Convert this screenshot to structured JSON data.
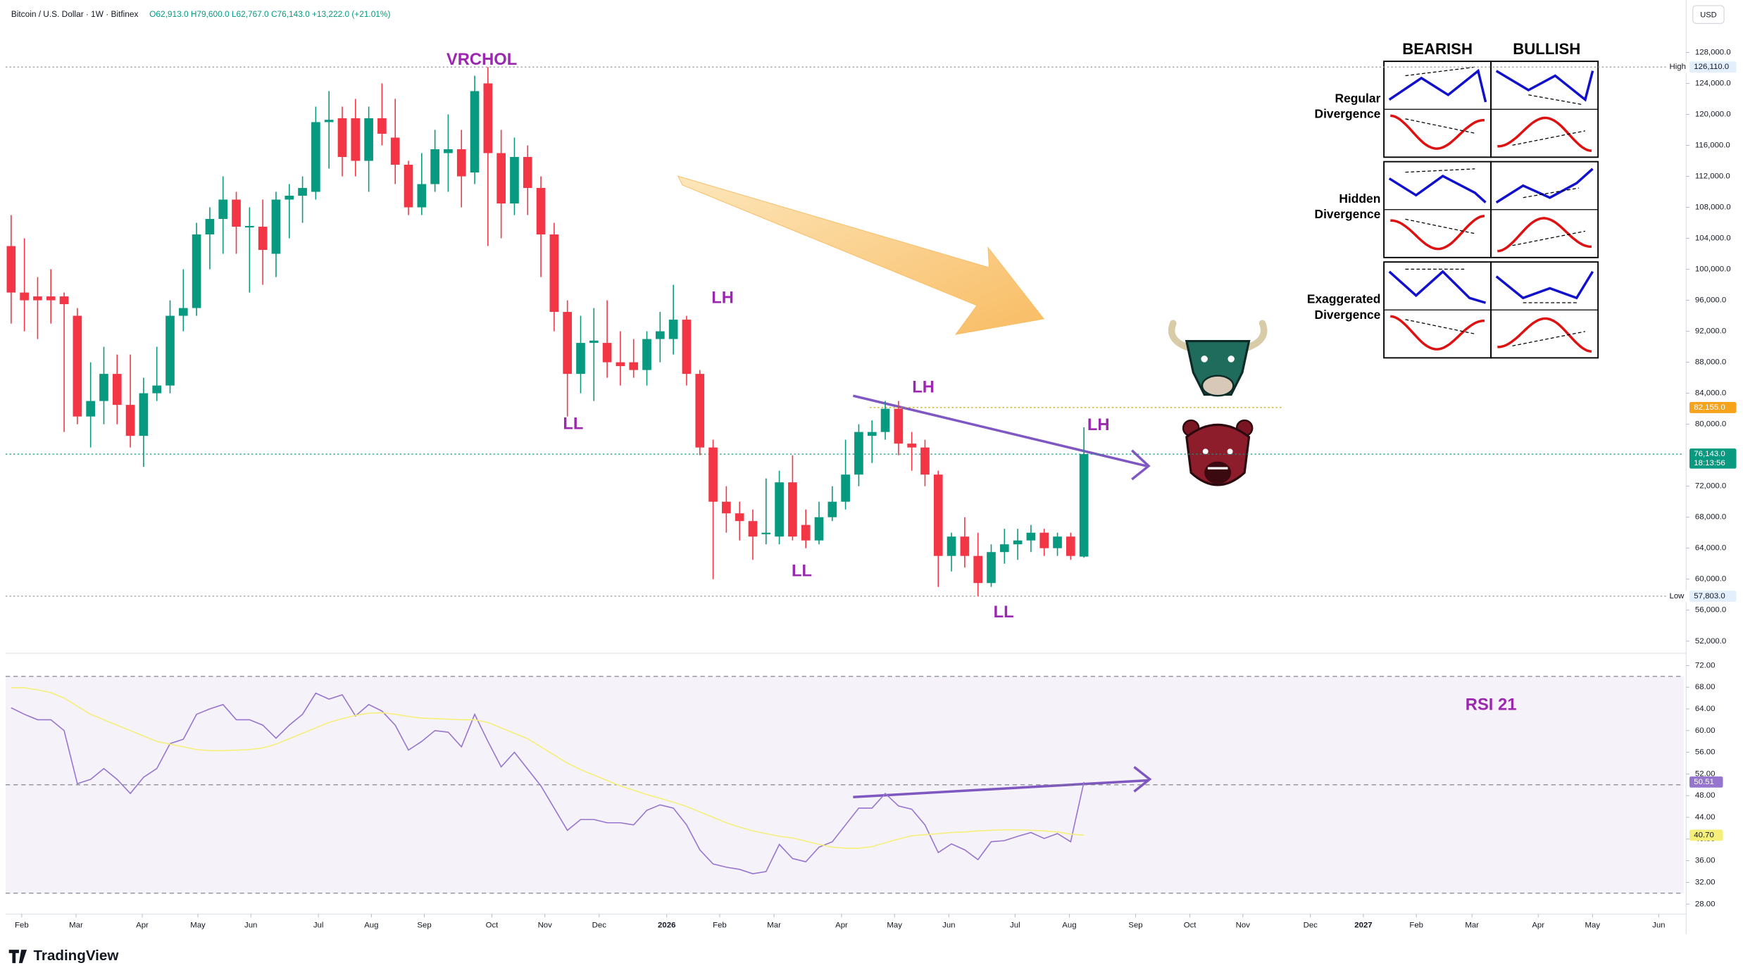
{
  "header": {
    "symbol": "Bitcoin / U.S. Dollar · 1W · Bitfinex",
    "ohlc": "O62,913.0 H79,600.0 L62,767.0 C76,143.0 +13,222.0 (+21.01%)",
    "currency": "USD"
  },
  "footer": "TradingView",
  "divergence_table": {
    "columns": [
      "BEARISH",
      "BULLISH"
    ],
    "rows": [
      [
        "Regular",
        "Divergence"
      ],
      [
        "Hidden",
        "Divergence"
      ],
      [
        "Exaggerated",
        "Divergence"
      ]
    ]
  },
  "chart_data": [
    {
      "type": "candlestick",
      "up_color": "#089981",
      "down_color": "#f23645",
      "open": [
        103000,
        97000,
        96500,
        96500,
        96500,
        94000,
        81000,
        83000,
        86500,
        82500,
        78500,
        84000,
        85000,
        94000,
        95000,
        104500,
        106500,
        109000,
        105400,
        105500,
        102000,
        109000,
        109500,
        110000,
        119000,
        119500,
        119500,
        114000,
        119500,
        117000,
        113500,
        108000,
        111000,
        115000,
        115500,
        112500,
        124000,
        115000,
        108500,
        114500,
        110500,
        104500,
        94500,
        86500,
        90500,
        90500,
        88000,
        88000,
        87000,
        91000,
        91000,
        93500,
        86500,
        77000,
        70000,
        68500,
        67500,
        65800,
        65500,
        72500,
        67000,
        65000,
        68000,
        70000,
        73500,
        78500,
        79000,
        82000,
        77500,
        77000,
        73500,
        63000,
        65500,
        63000,
        59500,
        63500,
        64500,
        65000,
        66000,
        64000,
        65500,
        62913
      ],
      "high": [
        107000,
        104000,
        99000,
        100000,
        97000,
        95000,
        88000,
        90000,
        89000,
        89000,
        86000,
        90000,
        96000,
        100000,
        106000,
        108000,
        112000,
        110000,
        108000,
        109000,
        110000,
        111000,
        112000,
        121000,
        123000,
        121000,
        122000,
        121000,
        124000,
        122000,
        114000,
        115000,
        118000,
        120000,
        118000,
        125000,
        126110,
        118000,
        117000,
        116000,
        112000,
        106000,
        96000,
        94000,
        95000,
        96000,
        92000,
        91000,
        92000,
        94500,
        98000,
        94000,
        87000,
        78000,
        72000,
        70000,
        69000,
        73000,
        74000,
        76000,
        69000,
        70000,
        72000,
        78000,
        80000,
        80500,
        83000,
        83000,
        79000,
        78000,
        74000,
        66000,
        68000,
        66000,
        64500,
        66500,
        66500,
        67000,
        66500,
        66000,
        66000,
        79600
      ],
      "low": [
        93000,
        92000,
        91000,
        93000,
        79000,
        80000,
        77000,
        80000,
        80000,
        77000,
        74500,
        83000,
        84000,
        92000,
        94000,
        100000,
        102000,
        102000,
        97000,
        98000,
        99000,
        104000,
        106000,
        109000,
        113000,
        112000,
        112000,
        110000,
        116000,
        111000,
        107000,
        107000,
        110000,
        110000,
        108000,
        111000,
        103000,
        104000,
        107000,
        107000,
        99000,
        92000,
        81000,
        84000,
        83000,
        86000,
        85000,
        86000,
        85000,
        88000,
        89000,
        85000,
        76000,
        60000,
        66000,
        65000,
        62500,
        64500,
        64500,
        65000,
        64000,
        64500,
        67500,
        69000,
        72000,
        75000,
        78000,
        76000,
        74000,
        72000,
        59000,
        61000,
        61500,
        57803,
        59000,
        62000,
        62500,
        63500,
        63000,
        63000,
        62500,
        62767
      ],
      "close": [
        97000,
        96000,
        96000,
        96000,
        95500,
        81000,
        83000,
        86500,
        82500,
        78500,
        84000,
        85000,
        94000,
        95000,
        104500,
        106500,
        109000,
        105500,
        105600,
        102500,
        109000,
        109500,
        110500,
        119000,
        119300,
        114500,
        114000,
        119500,
        117500,
        113500,
        108000,
        111000,
        115500,
        115500,
        112000,
        123000,
        115000,
        108500,
        114500,
        110500,
        104500,
        94500,
        86500,
        90500,
        90800,
        88000,
        87500,
        87000,
        91000,
        92000,
        93500,
        86500,
        77000,
        70000,
        68500,
        67500,
        65500,
        66000,
        72500,
        65500,
        65000,
        68000,
        70000,
        73500,
        79000,
        79000,
        82000,
        77500,
        77000,
        73500,
        63000,
        65500,
        63000,
        59500,
        63500,
        64500,
        65000,
        66000,
        64000,
        65500,
        63000,
        76143
      ],
      "xlim": [
        -0.42,
        126.3
      ],
      "xticks": [
        {
          "value": 0.8,
          "label": "Feb"
        },
        {
          "value": 4.9,
          "label": "Mar"
        },
        {
          "value": 9.9,
          "label": "Apr"
        },
        {
          "value": 14.1,
          "label": "May"
        },
        {
          "value": 18.1,
          "label": "Jun"
        },
        {
          "value": 23.2,
          "label": "Jul"
        },
        {
          "value": 27.2,
          "label": "Aug"
        },
        {
          "value": 31.2,
          "label": "Sep"
        },
        {
          "value": 36.3,
          "label": "Oct"
        },
        {
          "value": 40.3,
          "label": "Nov"
        },
        {
          "value": 44.4,
          "label": "Dec"
        },
        {
          "value": 49.5,
          "label": "2026"
        },
        {
          "value": 53.5,
          "label": "Feb"
        },
        {
          "value": 57.6,
          "label": "Mar"
        },
        {
          "value": 62.7,
          "label": "Apr"
        },
        {
          "value": 66.7,
          "label": "May"
        },
        {
          "value": 70.8,
          "label": "Jun"
        },
        {
          "value": 75.8,
          "label": "Jul"
        },
        {
          "value": 79.9,
          "label": "Aug"
        },
        {
          "value": 84.9,
          "label": "Sep"
        },
        {
          "value": 89,
          "label": "Oct"
        },
        {
          "value": 93,
          "label": "Nov"
        },
        {
          "value": 98.1,
          "label": "Dec"
        },
        {
          "value": 102.1,
          "label": "2027"
        },
        {
          "value": 106.1,
          "label": "Feb"
        },
        {
          "value": 110.3,
          "label": "Mar"
        },
        {
          "value": 115.3,
          "label": "Apr"
        },
        {
          "value": 119.4,
          "label": "May"
        },
        {
          "value": 124.4,
          "label": "Jun"
        }
      ],
      "ylim": [
        50580,
        134760
      ],
      "yticks": [
        {
          "value": 128000,
          "label": "128,000.0"
        },
        {
          "value": 124000,
          "label": "124,000.0"
        },
        {
          "value": 120000,
          "label": "120,000.0"
        },
        {
          "value": 116000,
          "label": "116,000.0"
        },
        {
          "value": 112000,
          "label": "112,000.0"
        },
        {
          "value": 108000,
          "label": "108,000.0"
        },
        {
          "value": 104000,
          "label": "104,000.0"
        },
        {
          "value": 100000,
          "label": "100,000.0"
        },
        {
          "value": 96000,
          "label": "96,000.0"
        },
        {
          "value": 92000,
          "label": "92,000.0"
        },
        {
          "value": 88000,
          "label": "88,000.0"
        },
        {
          "value": 84000,
          "label": "84,000.0"
        },
        {
          "value": 80000,
          "label": "80,000.0"
        },
        {
          "value": 72000,
          "label": "72,000.0"
        },
        {
          "value": 68000,
          "label": "68,000.0"
        },
        {
          "value": 64000,
          "label": "64,000.0"
        },
        {
          "value": 60000,
          "label": "60,000.0"
        },
        {
          "value": 56000,
          "label": "56,000.0"
        },
        {
          "value": 52000,
          "label": "52,000.0"
        }
      ],
      "annotations": [
        "VRCHOL",
        "LH",
        "LL",
        "LH",
        "LL",
        "LH",
        "LL"
      ],
      "annotation_color": "#9c27b0",
      "price_labels": [
        {
          "label": "High",
          "value": 126110,
          "value_label": "126,110.0",
          "color": "#e3effd"
        },
        {
          "value": 82155,
          "value_label": "82,155.0",
          "color": "#f7a21b"
        },
        {
          "value": 76143,
          "value_label": "76,143.0",
          "countdown": "18:13:56",
          "color": "#089981"
        },
        {
          "label": "Low",
          "value": 57803,
          "value_label": "57,803.0",
          "color": "#e3effd"
        }
      ]
    },
    {
      "type": "line",
      "title": "RSI 21",
      "title_color": "#9c27b0",
      "series": [
        {
          "color": "#9575cd",
          "values": [
            64.2,
            63,
            62,
            62,
            60,
            50.2,
            51,
            53,
            51,
            48.4,
            51.4,
            53,
            57.6,
            58.4,
            63,
            64,
            64.8,
            62,
            62,
            61,
            58.6,
            61,
            63,
            66.9,
            65.8,
            66.6,
            62.7,
            64.8,
            63.6,
            61,
            56.4,
            58,
            60,
            59.7,
            57,
            63,
            58,
            53.3,
            56,
            52.9,
            49.8,
            45.7,
            41.6,
            43.6,
            43.6,
            43,
            43,
            42.6,
            45.3,
            46.3,
            45.7,
            42.6,
            38,
            35.4,
            34.8,
            34.4,
            33.6,
            34,
            39,
            36.4,
            35.8,
            38.5,
            39.5,
            42.6,
            45.7,
            45.7,
            48.4,
            46.1,
            45.5,
            42.6,
            37.5,
            39.1,
            38,
            36.2,
            39.5,
            39.7,
            40.5,
            41.2,
            40.1,
            41,
            39.5,
            50.51
          ],
          "last_value_label": "50.51"
        },
        {
          "color": "#f5ef7a",
          "values": [
            67.9,
            67.9,
            67.5,
            67,
            66,
            64.5,
            63,
            62,
            61,
            60,
            59,
            58,
            57.5,
            57,
            56.5,
            56.3,
            56.3,
            56.4,
            56.5,
            56.8,
            57.5,
            58.5,
            59.5,
            60.5,
            61.5,
            62.2,
            62.8,
            63.2,
            63.3,
            63,
            62.6,
            62.3,
            62.2,
            62.1,
            62,
            62,
            61.5,
            60.5,
            59.5,
            58.5,
            57,
            55.5,
            54,
            52.8,
            51.8,
            50.8,
            49.8,
            49,
            48.2,
            47.5,
            46.8,
            46,
            45,
            44,
            43,
            42.2,
            41.5,
            41,
            40.5,
            40.2,
            39.6,
            39,
            38.5,
            38.3,
            38.3,
            38.6,
            39.3,
            40,
            40.6,
            40.8,
            41,
            41.2,
            41.3,
            41.5,
            41.6,
            41.7,
            41.7,
            41.6,
            41.5,
            41.3,
            40.9,
            40.7
          ],
          "last_value_label": "40.70"
        }
      ],
      "bands": [
        70,
        50,
        30
      ],
      "ylim": [
        26.15,
        73.85
      ],
      "yticks": [
        {
          "value": 72,
          "label": "72.00"
        },
        {
          "value": 68,
          "label": "68.00"
        },
        {
          "value": 64,
          "label": "64.00"
        },
        {
          "value": 60,
          "label": "60.00"
        },
        {
          "value": 56,
          "label": "56.00"
        },
        {
          "value": 52,
          "label": "52.00"
        },
        {
          "value": 48,
          "label": "48.00"
        },
        {
          "value": 44,
          "label": "44.00"
        },
        {
          "value": 40,
          "label": "40.00"
        },
        {
          "value": 36,
          "label": "36.00"
        },
        {
          "value": 32,
          "label": "32.00"
        },
        {
          "value": 28,
          "label": "28.00"
        }
      ]
    }
  ]
}
